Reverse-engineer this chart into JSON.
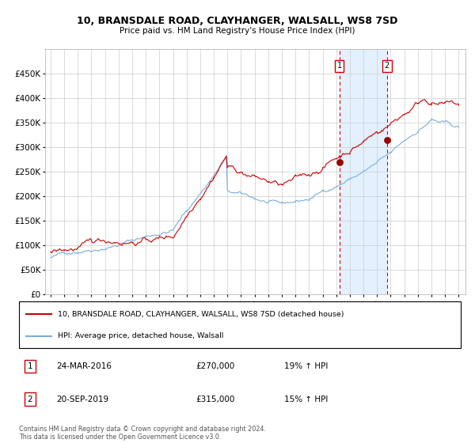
{
  "title": "10, BRANSDALE ROAD, CLAYHANGER, WALSALL, WS8 7SD",
  "subtitle": "Price paid vs. HM Land Registry's House Price Index (HPI)",
  "legend_house": "10, BRANSDALE ROAD, CLAYHANGER, WALSALL, WS8 7SD (detached house)",
  "legend_hpi": "HPI: Average price, detached house, Walsall",
  "annotation1_label": "1",
  "annotation1_date": "24-MAR-2016",
  "annotation1_price": "£270,000",
  "annotation1_pct": "19% ↑ HPI",
  "annotation2_label": "2",
  "annotation2_date": "20-SEP-2019",
  "annotation2_price": "£315,000",
  "annotation2_pct": "15% ↑ HPI",
  "sale1_year": 2016.22,
  "sale1_value": 270000,
  "sale2_year": 2019.72,
  "sale2_value": 315000,
  "footer": "Contains HM Land Registry data © Crown copyright and database right 2024.\nThis data is licensed under the Open Government Licence v3.0.",
  "ylim": [
    0,
    500000
  ],
  "yticks": [
    0,
    50000,
    100000,
    150000,
    200000,
    250000,
    300000,
    350000,
    400000,
    450000
  ],
  "house_color": "#cc0000",
  "hpi_color": "#7aaddb",
  "shade_color": "#ddeeff",
  "vline_color": "#cc0000",
  "dot_color": "#990000",
  "box_color": "#cc0000",
  "bg_color": "#ffffff",
  "grid_color": "#cccccc"
}
